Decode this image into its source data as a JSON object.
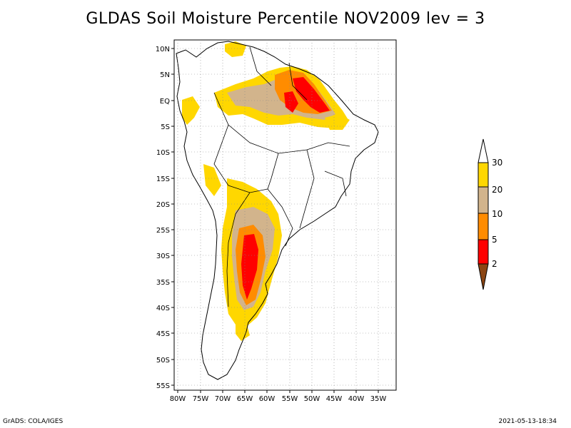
{
  "title": "GLDAS Soil Moisture Percentile NOV2009 lev = 3",
  "map": {
    "lon_ticks": [
      "80W",
      "75W",
      "70W",
      "65W",
      "60W",
      "55W",
      "50W",
      "45W",
      "40W",
      "35W"
    ],
    "lat_ticks": [
      "10N",
      "5N",
      "EQ",
      "5S",
      "10S",
      "15S",
      "20S",
      "25S",
      "30S",
      "35S",
      "40S",
      "45S",
      "50S",
      "55S"
    ],
    "lon_range": [
      -80,
      -33
    ],
    "lat_range": [
      -56,
      12
    ],
    "grid": true,
    "grid_style": "dotted"
  },
  "legend": {
    "position": "right",
    "levels": [
      "2",
      "5",
      "10",
      "20",
      "30"
    ],
    "colors": {
      "below_2": "#8b4513",
      "2_5": "#ff0000",
      "5_10": "#ff8c00",
      "10_20": "#d2b48c",
      "20_30": "#ffd700",
      "above_30": "#ffffff"
    }
  },
  "footer": {
    "left": "GrADS: COLA/IGES",
    "right": "2021-05-13-18:34"
  }
}
